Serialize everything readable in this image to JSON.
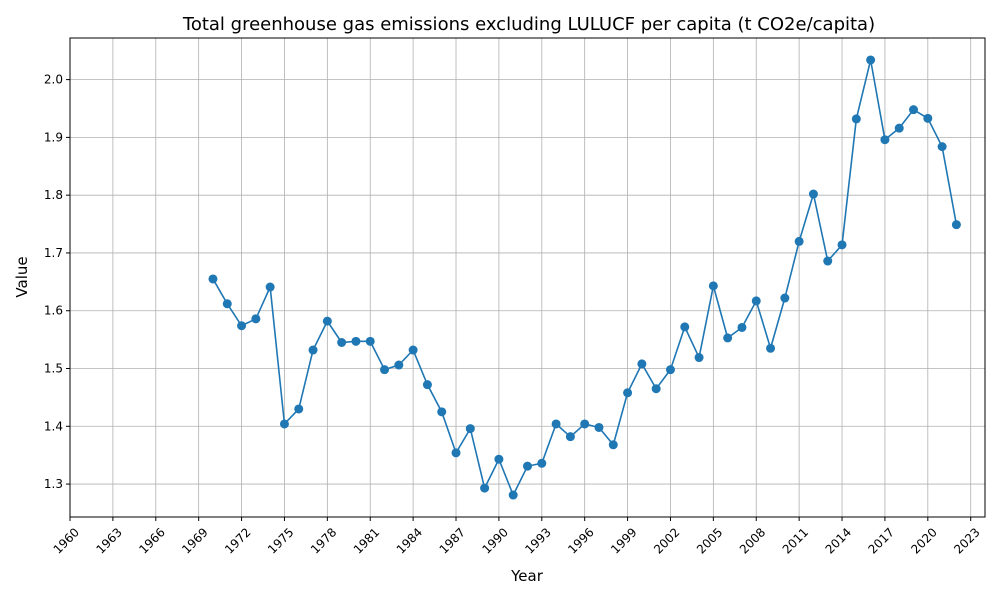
{
  "chart_data": {
    "type": "line",
    "title": "Total greenhouse gas emissions excluding LULUCF per capita (t CO2e/capita)",
    "xlabel": "Year",
    "ylabel": "Value",
    "xlim": [
      1960,
      2024
    ],
    "ylim": [
      1.243,
      2.072
    ],
    "xticks": [
      1960,
      1963,
      1966,
      1969,
      1972,
      1975,
      1978,
      1981,
      1984,
      1987,
      1990,
      1993,
      1996,
      1999,
      2002,
      2005,
      2008,
      2011,
      2014,
      2017,
      2020,
      2023
    ],
    "yticks": [
      "1.3",
      "1.4",
      "1.5",
      "1.6",
      "1.7",
      "1.8",
      "1.9",
      "2.0"
    ],
    "grid": true,
    "marker": "circle",
    "color": "#1f77b4",
    "x": [
      1970,
      1971,
      1972,
      1973,
      1974,
      1975,
      1976,
      1977,
      1978,
      1979,
      1980,
      1981,
      1982,
      1983,
      1984,
      1985,
      1986,
      1987,
      1988,
      1989,
      1990,
      1991,
      1992,
      1993,
      1994,
      1995,
      1996,
      1997,
      1998,
      1999,
      2000,
      2001,
      2002,
      2003,
      2004,
      2005,
      2006,
      2007,
      2008,
      2009,
      2010,
      2011,
      2012,
      2013,
      2014,
      2015,
      2016,
      2017,
      2018,
      2019,
      2020,
      2021,
      2022
    ],
    "y": [
      1.655,
      1.612,
      1.574,
      1.586,
      1.641,
      1.404,
      1.43,
      1.532,
      1.582,
      1.545,
      1.547,
      1.547,
      1.498,
      1.506,
      1.532,
      1.472,
      1.425,
      1.354,
      1.396,
      1.293,
      1.343,
      1.281,
      1.331,
      1.336,
      1.404,
      1.382,
      1.404,
      1.398,
      1.368,
      1.458,
      1.508,
      1.465,
      1.498,
      1.572,
      1.519,
      1.643,
      1.553,
      1.571,
      1.617,
      1.535,
      1.622,
      1.72,
      1.802,
      1.686,
      1.714,
      1.932,
      2.034,
      1.896,
      1.916,
      1.948,
      1.933,
      1.884,
      1.749
    ]
  }
}
